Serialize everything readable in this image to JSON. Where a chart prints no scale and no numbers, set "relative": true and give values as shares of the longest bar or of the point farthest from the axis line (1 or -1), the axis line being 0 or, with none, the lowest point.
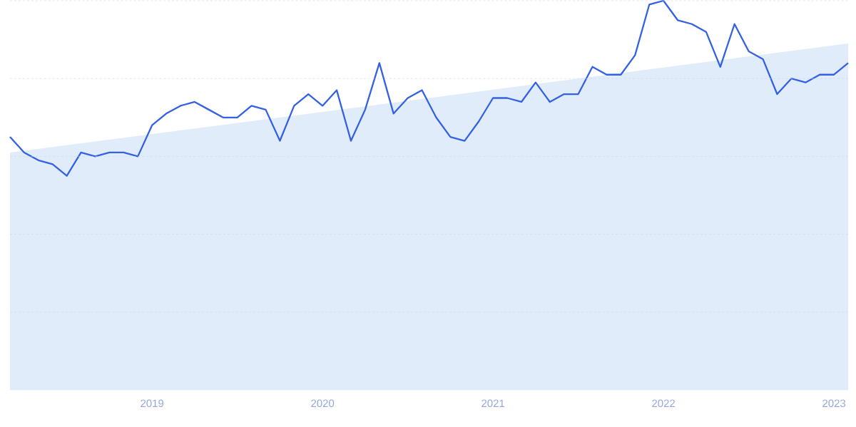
{
  "chart_data": {
    "type": "line",
    "relative": true,
    "grid": "y",
    "xlim": [
      "2018-03",
      "2023-02"
    ],
    "xticks": [
      "2019",
      "2020",
      "2021",
      "2022",
      "2023"
    ],
    "series": [
      {
        "type": "area",
        "color": "#e1ecfb",
        "x": [
          "2018-03",
          "2023-02"
        ],
        "values": [
          0.61,
          0.89
        ]
      },
      {
        "color": "#3461e4",
        "x": [
          "2018-03",
          "2018-04",
          "2018-05",
          "2018-06",
          "2018-07",
          "2018-08",
          "2018-09",
          "2018-10",
          "2018-11",
          "2018-12",
          "2019-01",
          "2019-02",
          "2019-03",
          "2019-04",
          "2019-05",
          "2019-06",
          "2019-07",
          "2019-08",
          "2019-09",
          "2019-10",
          "2019-11",
          "2019-12",
          "2020-01",
          "2020-02",
          "2020-03",
          "2020-04",
          "2020-05",
          "2020-06",
          "2020-07",
          "2020-08",
          "2020-09",
          "2020-10",
          "2020-11",
          "2020-12",
          "2021-01",
          "2021-02",
          "2021-03",
          "2021-04",
          "2021-05",
          "2021-06",
          "2021-07",
          "2021-08",
          "2021-09",
          "2021-10",
          "2021-11",
          "2021-12",
          "2022-01",
          "2022-02",
          "2022-03",
          "2022-04",
          "2022-05",
          "2022-06",
          "2022-07",
          "2022-08",
          "2022-09",
          "2022-10",
          "2022-11",
          "2022-12",
          "2023-01",
          "2023-02"
        ],
        "values": [
          0.65,
          0.61,
          0.59,
          0.58,
          0.55,
          0.61,
          0.6,
          0.61,
          0.61,
          0.6,
          0.68,
          0.71,
          0.73,
          0.74,
          0.72,
          0.7,
          0.7,
          0.73,
          0.72,
          0.64,
          0.73,
          0.76,
          0.73,
          0.77,
          0.64,
          0.72,
          0.84,
          0.71,
          0.75,
          0.77,
          0.7,
          0.65,
          0.64,
          0.69,
          0.75,
          0.75,
          0.74,
          0.79,
          0.74,
          0.76,
          0.76,
          0.83,
          0.81,
          0.81,
          0.86,
          0.99,
          1.0,
          0.95,
          0.94,
          0.92,
          0.83,
          0.94,
          0.87,
          0.85,
          0.76,
          0.8,
          0.79,
          0.81,
          0.81,
          0.84
        ]
      }
    ]
  }
}
